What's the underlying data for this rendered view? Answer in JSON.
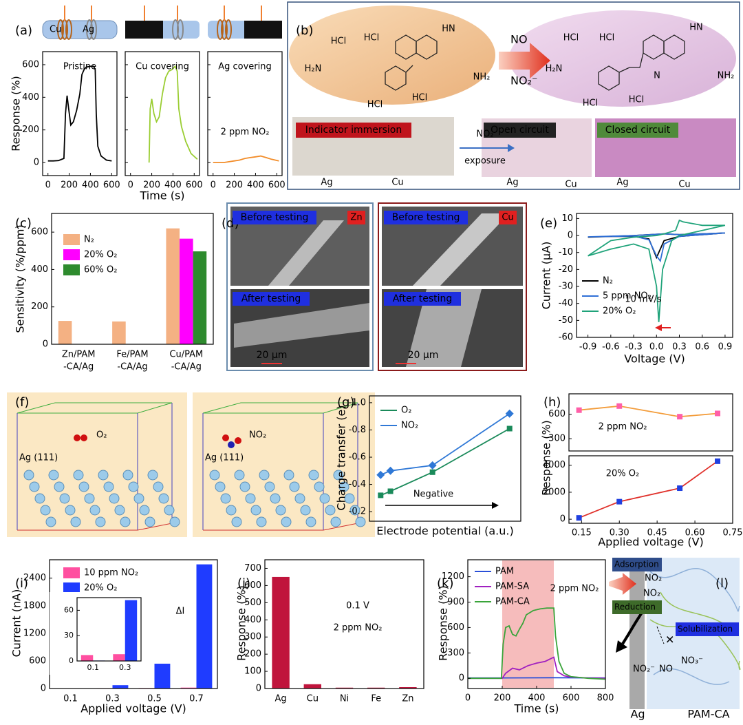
{
  "panel_labels": [
    "(a)",
    "(b)",
    "(c)",
    "(d)",
    "(e)",
    "(f)",
    "(g)",
    "(h)",
    "(i)",
    "(j)",
    "(k)",
    "(l)"
  ],
  "chart_data": [
    {
      "type": "line",
      "title": "Pristine",
      "ylabel": "Response (%)",
      "x": [
        0,
        50,
        100,
        150,
        165,
        180,
        195,
        215,
        240,
        270,
        300,
        320,
        340,
        360,
        400,
        430,
        445,
        455,
        470,
        500,
        550,
        600
      ],
      "series": [
        {
          "color": "#000000",
          "values": [
            10,
            10,
            12,
            25,
            300,
            410,
            330,
            230,
            250,
            320,
            420,
            540,
            570,
            585,
            590,
            590,
            570,
            300,
            100,
            40,
            15,
            10
          ]
        }
      ],
      "xlim": [
        -50,
        650
      ],
      "xticks": [
        0,
        200,
        400,
        600
      ],
      "ylim": [
        -80,
        680
      ],
      "yticks": [
        0,
        200,
        400,
        600
      ]
    },
    {
      "type": "line",
      "title": "Cu covering",
      "xlabel": "Time (s)",
      "x": [
        175,
        185,
        200,
        220,
        245,
        270,
        300,
        330,
        360,
        390,
        420,
        440,
        455,
        480,
        520,
        570,
        630
      ],
      "series": [
        {
          "color": "#9acd32",
          "values": [
            0,
            330,
            390,
            300,
            250,
            280,
            420,
            520,
            560,
            570,
            590,
            560,
            330,
            220,
            130,
            55,
            20
          ]
        }
      ],
      "xlim": [
        -50,
        650
      ],
      "xticks": [
        0,
        200,
        400,
        600
      ],
      "ylim": [
        -80,
        680
      ],
      "yticks": [
        0,
        200,
        400,
        600
      ]
    },
    {
      "type": "line",
      "title": "Ag covering",
      "annotations": [
        "2 ppm NO₂"
      ],
      "x": [
        0,
        100,
        150,
        200,
        250,
        300,
        350,
        400,
        450,
        500,
        550,
        620
      ],
      "series": [
        {
          "color": "#f28c28",
          "values": [
            0,
            0,
            5,
            10,
            15,
            25,
            30,
            35,
            40,
            30,
            20,
            10
          ]
        }
      ],
      "xlim": [
        -50,
        650
      ],
      "xticks": [
        0,
        200,
        400,
        600
      ],
      "ylim": [
        -80,
        680
      ],
      "yticks": [
        0,
        200,
        400,
        600
      ]
    },
    {
      "type": "bar",
      "ylabel": "Sensitivity (%/ppm)",
      "categories": [
        [
          "Zn/PAM",
          "-CA/Ag"
        ],
        [
          "Fe/PAM",
          "-CA/Ag"
        ],
        [
          "Cu/PAM",
          "-CA/Ag"
        ]
      ],
      "series": [
        {
          "name": "N₂",
          "color": "#f4b183",
          "values": [
            125,
            122,
            620
          ]
        },
        {
          "name": "20% O₂",
          "color": "#ff00ff",
          "values": [
            null,
            null,
            565
          ]
        },
        {
          "name": "60% O₂",
          "color": "#2e8b2e",
          "values": [
            null,
            null,
            497
          ]
        }
      ],
      "ylim": [
        0,
        700
      ],
      "yticks": [
        0,
        200,
        400,
        600
      ]
    },
    {
      "type": "line",
      "ylabel": "Current (μA)",
      "xlabel": "Voltage (V)",
      "annotations": [
        "10 mV/s"
      ],
      "series": [
        {
          "name": "N₂",
          "color": "#000000",
          "x": [
            -0.9,
            -0.6,
            -0.3,
            -0.1,
            0,
            0.05,
            0.1,
            0.3,
            0.6,
            0.9,
            0.6,
            0.3,
            0.1,
            -0.3,
            -0.9
          ],
          "values": [
            -1,
            -0.5,
            -0.5,
            -2,
            -13,
            -8,
            -3,
            -0.5,
            0.5,
            1.5,
            1,
            0.5,
            1,
            0,
            -1
          ]
        },
        {
          "name": "5 ppm NO₂",
          "color": "#2f6fd6",
          "x": [
            -0.9,
            -0.6,
            -0.3,
            -0.1,
            0,
            0.05,
            0.1,
            0.3,
            0.6,
            0.9,
            0.6,
            0.3,
            0.1,
            -0.3,
            -0.9
          ],
          "values": [
            -0.8,
            -0.5,
            -0.3,
            -2.5,
            -12,
            -15,
            -5,
            -0.5,
            0.5,
            1.5,
            1,
            0.5,
            1,
            0,
            -0.8
          ]
        },
        {
          "name": "20% O₂",
          "color": "#1fa37a",
          "x": [
            -0.9,
            -0.6,
            -0.3,
            -0.1,
            0,
            0.03,
            0.08,
            0.2,
            0.3,
            0.6,
            0.9,
            0.6,
            0.35,
            0.3,
            0.25,
            0.1,
            0,
            -0.3,
            -0.6,
            -0.9
          ],
          "values": [
            -12,
            -8,
            -5,
            -8,
            -30,
            -51,
            -20,
            -3,
            0,
            3,
            6,
            6,
            8,
            9,
            3,
            1,
            0,
            -1,
            -3,
            -12
          ]
        }
      ],
      "xlim": [
        -1.05,
        1.0
      ],
      "xticks": [
        -0.9,
        -0.6,
        -0.3,
        {
          "value": 0,
          "label": "0.0"
        },
        0.3,
        0.6,
        0.9
      ],
      "ylim": [
        -60,
        13
      ],
      "yticks": [
        10,
        0,
        -10,
        -20,
        -30,
        -40,
        -50,
        -60
      ]
    },
    {
      "type": "line",
      "ylabel": "Charge transfer (e)",
      "xlabel": "Electrode potential (a.u.)",
      "annotations": [
        "Negative"
      ],
      "x": [
        0.08,
        0.15,
        0.45,
        1.0
      ],
      "series": [
        {
          "name": "O₂",
          "color": "#1a8a5a",
          "marker": "square",
          "values": [
            -0.32,
            -0.35,
            -0.49,
            -0.81
          ]
        },
        {
          "name": "NO₂",
          "color": "#2f78d6",
          "marker": "diamond",
          "values": [
            -0.47,
            -0.5,
            -0.54,
            -0.92
          ]
        }
      ],
      "xlim": [
        0,
        1.08
      ],
      "ylim": [
        -0.13,
        -1.05
      ],
      "yticks": [
        -0.2,
        -0.4,
        -0.6,
        -0.8,
        {
          "value": -1,
          "label": "-1.0"
        }
      ]
    },
    {
      "type": "line",
      "annotations": [
        "2 ppm NO₂"
      ],
      "x": [
        0.14,
        0.3,
        0.54,
        0.69
      ],
      "marker_color": "#ff5fa8",
      "series": [
        {
          "color": "#f39c3a",
          "marker": "square",
          "values": [
            650,
            700,
            570,
            610
          ]
        }
      ],
      "xlim": [
        0.1,
        0.75
      ],
      "ylim": [
        150,
        850
      ],
      "yticks": [
        300,
        600
      ]
    },
    {
      "type": "line",
      "annotations": [
        "20% O₂"
      ],
      "ylabel": "Response (%)",
      "xlabel": "Applied voltage (V)",
      "x": [
        0.14,
        0.3,
        0.54,
        0.69
      ],
      "marker_color": "#2040e0",
      "series": [
        {
          "color": "#e0302a",
          "marker": "square",
          "values": [
            100,
            1300,
            2300,
            4300
          ]
        }
      ],
      "xlim": [
        0.1,
        0.75
      ],
      "xticks": [
        0.15,
        {
          "value": 0.3,
          "label": "0.30"
        },
        0.45,
        {
          "value": 0.6,
          "label": "0.60"
        },
        0.75
      ],
      "ylim": [
        -300,
        4700
      ],
      "yticks": [
        0,
        2000,
        4000
      ]
    },
    {
      "type": "bar",
      "ylabel": "Current (nA)",
      "xlabel": "Applied voltage (V)",
      "annotations": [
        "ΔI"
      ],
      "categories": [
        "0.1",
        "0.3",
        "0.5",
        "0.7"
      ],
      "series": [
        {
          "name": "10 ppm NO₂",
          "color": "#ff4fa0",
          "values": [
            7,
            8,
            10,
            20
          ]
        },
        {
          "name": "20% O₂",
          "color": "#1f3cff",
          "values": [
            0.5,
            72,
            540,
            2700
          ]
        }
      ],
      "ylim": [
        0,
        2800
      ],
      "yticks": [
        0,
        600,
        1200,
        1800,
        2400
      ]
    },
    {
      "type": "bar",
      "categories": [
        "0.1",
        "0.3"
      ],
      "series": [
        {
          "color": "#ff4fa0",
          "values": [
            7,
            8
          ]
        },
        {
          "color": "#1f3cff",
          "values": [
            0.5,
            72
          ]
        }
      ],
      "ylim": [
        0,
        75
      ],
      "yticks": [
        0,
        30,
        60
      ]
    },
    {
      "type": "bar",
      "ylabel": "Response (%)",
      "annotations": [
        "0.1 V",
        "2 ppm NO₂"
      ],
      "categories": [
        "Ag",
        "Cu",
        "Ni",
        "Fe",
        "Zn"
      ],
      "values": [
        650,
        25,
        5,
        5,
        8
      ],
      "color": "#c0143c",
      "ylim": [
        0,
        750
      ],
      "yticks": [
        0,
        100,
        200,
        300,
        400,
        500,
        600,
        700
      ]
    },
    {
      "type": "line",
      "ylabel": "Response (%)",
      "xlabel": "Time (s)",
      "annotations": [
        "2 ppm NO₂"
      ],
      "shade": [
        200,
        500
      ],
      "shade_color": "#f6bcbc",
      "series": [
        {
          "name": "PAM",
          "color": "#2a4fd8",
          "x": [
            0,
            200,
            500,
            800
          ],
          "values": [
            5,
            5,
            8,
            5
          ]
        },
        {
          "name": "PAM-SA",
          "color": "#a020c0",
          "x": [
            0,
            200,
            220,
            260,
            300,
            350,
            400,
            450,
            480,
            500,
            520,
            560,
            600,
            700,
            800
          ],
          "values": [
            0,
            0,
            60,
            120,
            100,
            150,
            180,
            200,
            230,
            250,
            80,
            30,
            15,
            5,
            0
          ]
        },
        {
          "name": "PAM-CA",
          "color": "#3aa43a",
          "x": [
            0,
            195,
            205,
            220,
            240,
            260,
            280,
            300,
            320,
            340,
            380,
            420,
            460,
            500,
            510,
            530,
            560,
            600,
            700,
            800
          ],
          "values": [
            0,
            0,
            400,
            600,
            620,
            520,
            500,
            580,
            650,
            750,
            800,
            820,
            830,
            830,
            500,
            200,
            60,
            20,
            0,
            -10
          ]
        }
      ],
      "xlim": [
        0,
        800
      ],
      "xticks": [
        0,
        200,
        400,
        600,
        800
      ],
      "ylim": [
        -120,
        1400
      ],
      "yticks": [
        0,
        300,
        600,
        900,
        1200
      ]
    }
  ],
  "diagrams": {
    "a": {
      "electrodes": [
        "Cu",
        "Ag"
      ]
    },
    "b": {
      "hcl": [
        "HCl",
        "HCl",
        "HCl",
        "HCl",
        "HCl",
        "HCl",
        "HCl",
        "HCl"
      ],
      "groups": [
        "HN",
        "NH₂",
        "H₂N",
        "HN",
        "NH₂",
        "H₂N",
        "N"
      ],
      "reactants": [
        "NO",
        "NO₂⁻"
      ],
      "photo_labels": [
        "Indicator immersion",
        "Open circuit",
        "Closed circuit"
      ],
      "arrow_label": [
        "NO₂",
        "exposure"
      ],
      "electrodes": [
        "Ag",
        "Cu",
        "Ag",
        "Cu",
        "Ag",
        "Cu"
      ]
    },
    "d": {
      "left": [
        "Before testing",
        "Zn",
        "After testing",
        "20 μm"
      ],
      "right": [
        "Before testing",
        "Cu",
        "After testing",
        "20 μm"
      ]
    },
    "f": {
      "left": [
        "Ag (111)",
        "O₂"
      ],
      "right": [
        "Ag (111)",
        "NO₂"
      ]
    },
    "l": {
      "labels": [
        "Adsorption",
        "NO₂",
        "NO₂",
        "Reduction",
        "Solubilization",
        "NO₂⁻",
        "NO",
        "NO₃⁻",
        "Ag",
        "PAM-CA"
      ]
    }
  }
}
